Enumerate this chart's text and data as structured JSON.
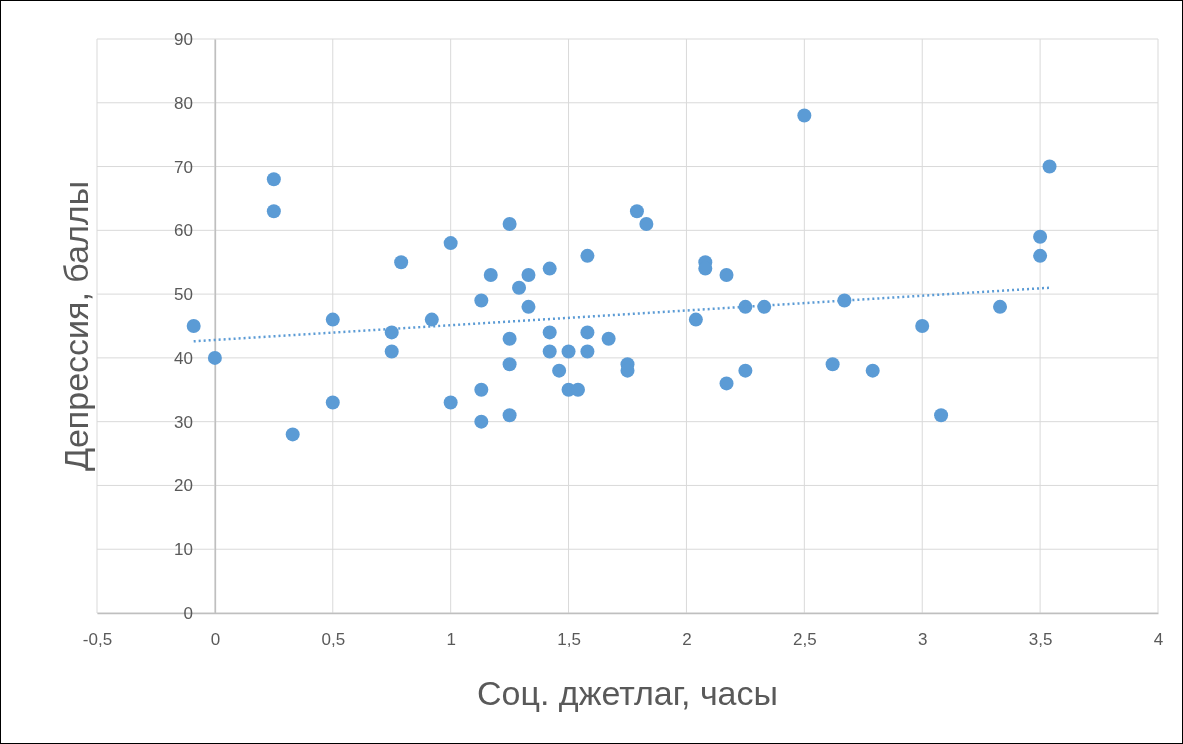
{
  "chart_data": {
    "type": "scatter",
    "xlabel": "Соц. джетлаг, часы",
    "ylabel": "Депрессия, баллы",
    "xlim": [
      -0.5,
      4
    ],
    "xticks": [
      {
        "value": -0.5,
        "label": "-0,5"
      },
      0,
      {
        "value": 0.5,
        "label": "0,5"
      },
      1,
      {
        "value": 1.5,
        "label": "1,5"
      },
      2,
      {
        "value": 2.5,
        "label": "2,5"
      },
      3,
      {
        "value": 3.5,
        "label": "3,5"
      },
      4
    ],
    "ylim": [
      0,
      90
    ],
    "yticks": [
      0,
      10,
      20,
      30,
      40,
      50,
      60,
      70,
      80,
      90
    ],
    "grid": true,
    "series": [
      {
        "color": "#5b9bd5",
        "marker": "circle",
        "x": [
          -0.09,
          0,
          0.25,
          0.25,
          0.33,
          0.5,
          0.5,
          0.75,
          0.75,
          0.79,
          0.92,
          1.0,
          1.0,
          1.13,
          1.13,
          1.13,
          1.17,
          1.25,
          1.25,
          1.25,
          1.25,
          1.29,
          1.33,
          1.33,
          1.42,
          1.42,
          1.42,
          1.46,
          1.5,
          1.5,
          1.54,
          1.58,
          1.58,
          1.58,
          1.67,
          1.75,
          1.75,
          1.79,
          1.83,
          2.04,
          2.08,
          2.08,
          2.17,
          2.17,
          2.25,
          2.25,
          2.33,
          2.5,
          2.62,
          2.67,
          2.79,
          3.0,
          3.08,
          3.33,
          3.5,
          3.5,
          3.54
        ],
        "values": [
          45,
          40,
          68,
          63,
          28,
          46,
          33,
          44,
          41,
          55,
          46,
          58,
          33,
          49,
          35,
          30,
          53,
          61,
          43,
          39,
          31,
          51,
          53,
          48,
          54,
          44,
          41,
          38,
          41,
          35,
          35,
          56,
          44,
          41,
          43,
          39,
          38,
          63,
          61,
          46,
          55,
          54,
          53,
          36,
          48,
          38,
          48,
          78,
          39,
          49,
          38,
          45,
          31,
          48,
          59,
          56,
          70
        ]
      },
      {
        "type": "line",
        "color": "#5b9bd5",
        "marker": "none",
        "line_style": "dotted",
        "x": [
          -0.09,
          3.54
        ],
        "values": [
          42.6,
          51
        ]
      }
    ]
  }
}
